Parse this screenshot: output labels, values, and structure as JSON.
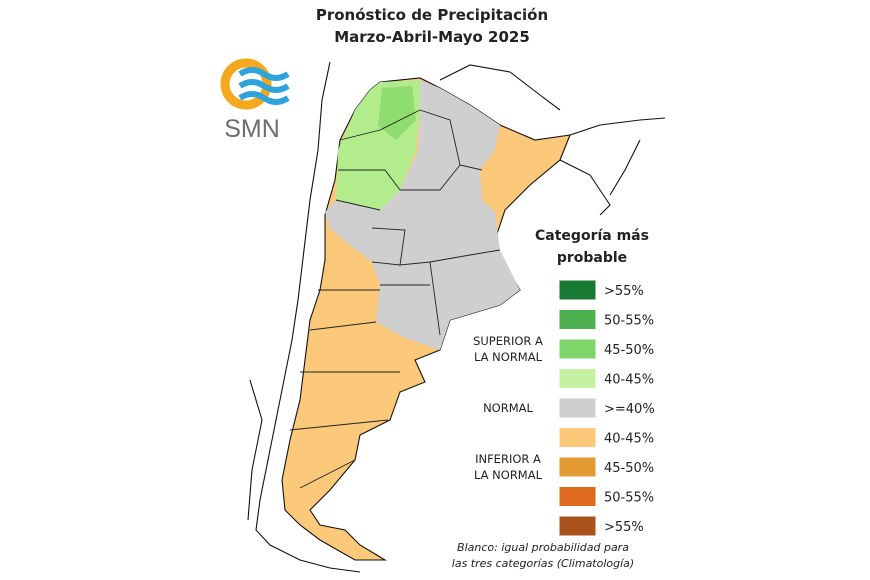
{
  "header": {
    "title_lines": [
      "Pronóstico de Precipitación",
      "Marzo-Abril-Mayo 2025"
    ],
    "logo_text": "SMN"
  },
  "legend": {
    "title_lines": [
      "Categoría más",
      "probable"
    ],
    "items": [
      {
        "label": ">55%",
        "color": "#187a33"
      },
      {
        "label": "50-55%",
        "color": "#4caf50"
      },
      {
        "label": "45-50%",
        "color": "#7ed66b"
      },
      {
        "label": "40-45%",
        "color": "#c6f0a2"
      },
      {
        "label": ">=40%",
        "color": "#cfcfcf"
      },
      {
        "label": "40-45%",
        "color": "#fcc87a"
      },
      {
        "label": "45-50%",
        "color": "#e39a32"
      },
      {
        "label": "50-55%",
        "color": "#dd6a1e"
      },
      {
        "label": ">55%",
        "color": "#a9521b"
      }
    ],
    "groups": [
      {
        "lines": [
          "SUPERIOR A",
          "LA NORMAL"
        ]
      },
      {
        "lines": [
          "NORMAL"
        ]
      },
      {
        "lines": [
          "INFERIOR A",
          "LA NORMAL"
        ]
      }
    ]
  },
  "footnote_lines": [
    "Blanco: igual probabilidad para",
    "las tres categorías (Climatología)"
  ]
}
